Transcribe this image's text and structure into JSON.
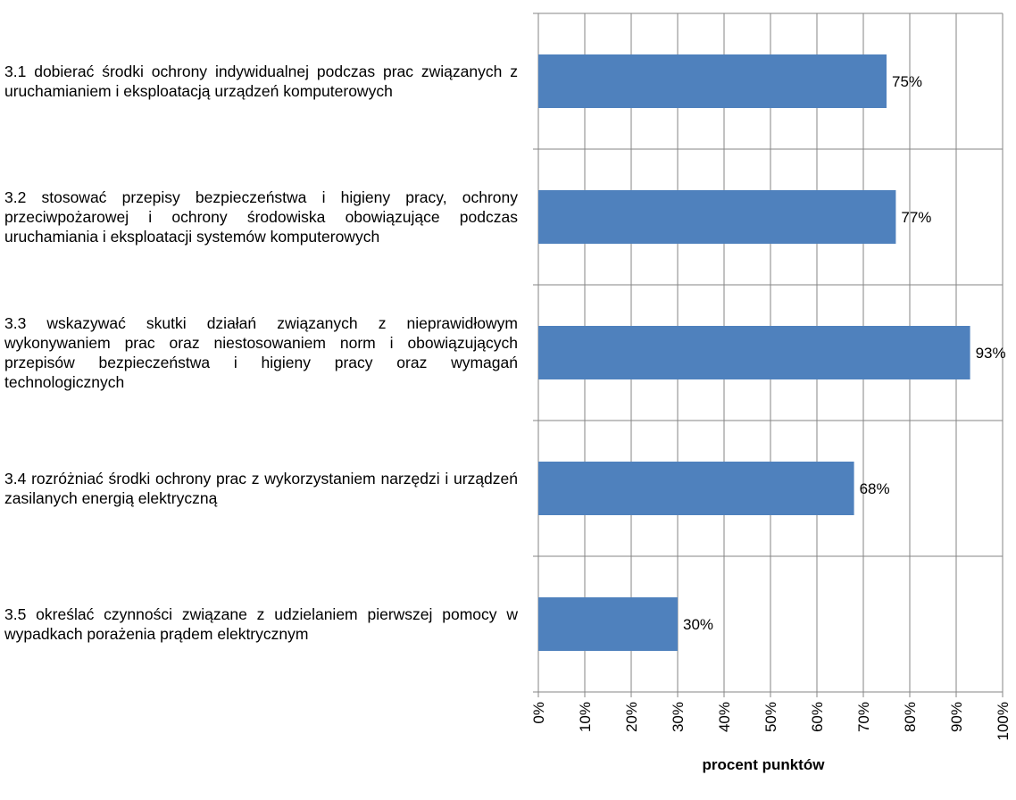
{
  "chart_data": {
    "type": "bar",
    "orientation": "horizontal",
    "categories": [
      "3.1 dobierać środki ochrony indywidualnej podczas prac związanych z uruchamianiem i eksploatacją urządzeń komputerowych",
      "3.2 stosować przepisy bezpieczeństwa i higieny pracy, ochrony przeciwpożarowej i ochrony środowiska obowiązujące podczas uruchamiania i eksploatacji systemów komputerowych",
      "3.3 wskazywać skutki działań związanych z nieprawidłowym wykonywaniem prac oraz niestosowaniem norm i obowiązujących przepisów bezpieczeństwa i higieny pracy oraz wymagań technologicznych",
      "3.4 rozróżniać środki ochrony prac z wykorzystaniem narzędzi i urządzeń zasilanych energią elektryczną",
      "3.5 określać czynności związane z udzielaniem pierwszej pomocy w wypadkach porażenia prądem elektrycznym"
    ],
    "values": [
      75,
      77,
      93,
      68,
      30
    ],
    "value_labels": [
      "75%",
      "77%",
      "93%",
      "68%",
      "30%"
    ],
    "color": "#4f81bd",
    "xlim": [
      0,
      100
    ],
    "xticks": [
      {
        "value": 0,
        "label": "0%"
      },
      {
        "value": 10,
        "label": "10%"
      },
      {
        "value": 20,
        "label": "20%"
      },
      {
        "value": 30,
        "label": "30%"
      },
      {
        "value": 40,
        "label": "40%"
      },
      {
        "value": 50,
        "label": "50%"
      },
      {
        "value": 60,
        "label": "60%"
      },
      {
        "value": 70,
        "label": "70%"
      },
      {
        "value": 80,
        "label": "80%"
      },
      {
        "value": 90,
        "label": "90%"
      },
      {
        "value": 100,
        "label": "100%"
      }
    ],
    "xlabel": "procent punktów",
    "grid": true
  }
}
